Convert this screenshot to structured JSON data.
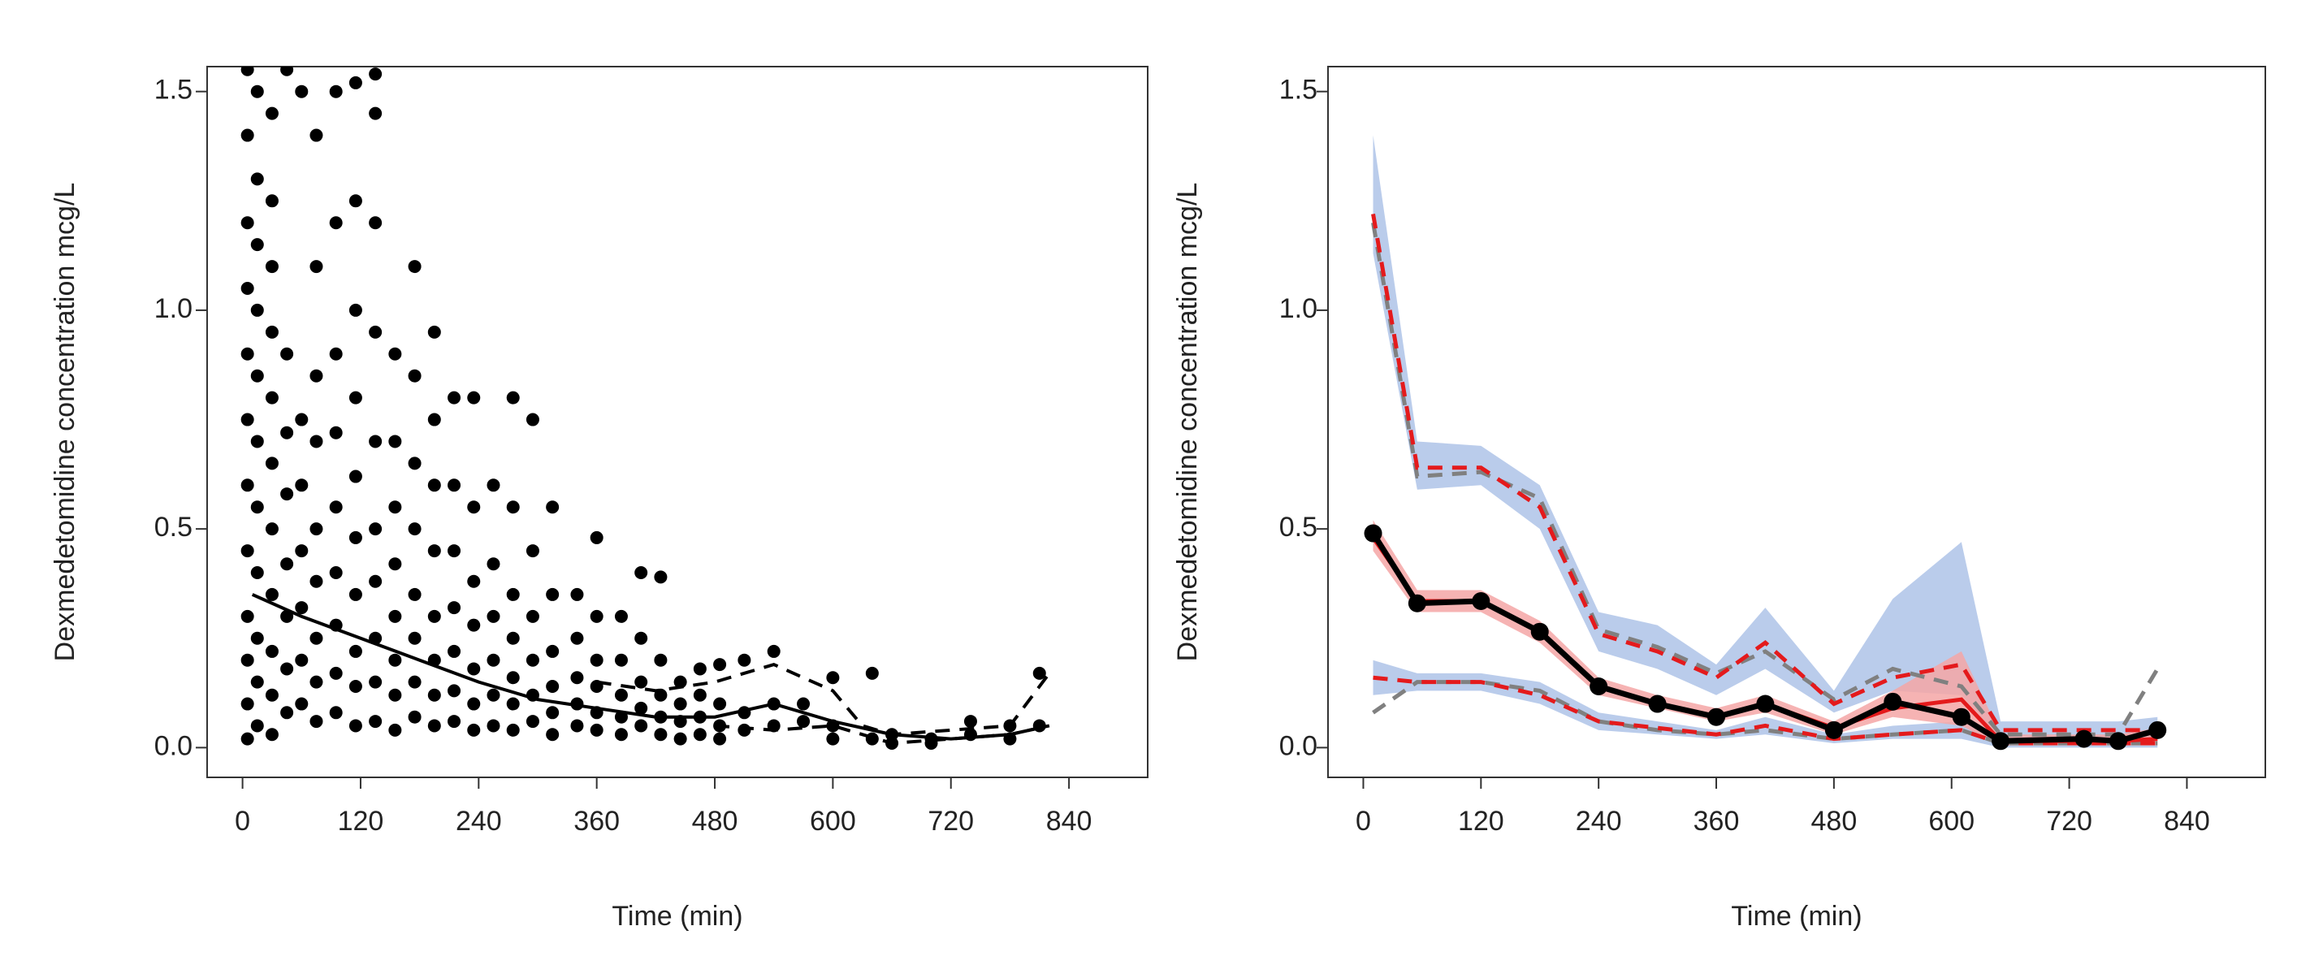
{
  "chart_data": [
    {
      "type": "scatter",
      "ylabel": "Dexmedetomidine concentration mcg/L",
      "xlabel": "Time (min)",
      "xlim": [
        -36,
        920
      ],
      "ylim": [
        -0.068,
        1.557
      ],
      "xticks": [
        0,
        120,
        240,
        360,
        480,
        600,
        720,
        840
      ],
      "yticks": [
        {
          "value": 0,
          "label": "0.0"
        },
        {
          "value": 0.5,
          "label": "0.5"
        },
        {
          "value": 1,
          "label": "1.0"
        },
        {
          "value": 1.5,
          "label": "1.5"
        }
      ],
      "color": "#000000",
      "points": [
        {
          "x": 5,
          "y": [
            0.02,
            0.1,
            0.2,
            0.3,
            0.45,
            0.6,
            0.75,
            0.9,
            1.05,
            1.2,
            1.4,
            1.55
          ]
        },
        {
          "x": 15,
          "y": [
            0.05,
            0.15,
            0.25,
            0.4,
            0.55,
            0.7,
            0.85,
            1.0,
            1.15,
            1.3,
            1.5
          ]
        },
        {
          "x": 30,
          "y": [
            0.03,
            0.12,
            0.22,
            0.35,
            0.5,
            0.65,
            0.8,
            0.95,
            1.1,
            1.25,
            1.45
          ]
        },
        {
          "x": 45,
          "y": [
            0.08,
            0.18,
            0.3,
            0.42,
            0.58,
            0.72,
            0.9,
            1.55
          ]
        },
        {
          "x": 60,
          "y": [
            0.1,
            0.2,
            0.32,
            0.45,
            0.6,
            0.75,
            1.5
          ]
        },
        {
          "x": 75,
          "y": [
            0.06,
            0.15,
            0.25,
            0.38,
            0.5,
            0.7,
            0.85,
            1.1,
            1.4
          ]
        },
        {
          "x": 95,
          "y": [
            0.08,
            0.17,
            0.28,
            0.4,
            0.55,
            0.72,
            0.9,
            1.2,
            1.5
          ]
        },
        {
          "x": 115,
          "y": [
            0.05,
            0.14,
            0.22,
            0.35,
            0.48,
            0.62,
            0.8,
            1.0,
            1.25,
            1.52
          ]
        },
        {
          "x": 135,
          "y": [
            0.06,
            0.15,
            0.25,
            0.38,
            0.5,
            0.7,
            0.95,
            1.2,
            1.45,
            1.54
          ]
        },
        {
          "x": 155,
          "y": [
            0.04,
            0.12,
            0.2,
            0.3,
            0.42,
            0.55,
            0.7,
            0.9
          ]
        },
        {
          "x": 175,
          "y": [
            0.07,
            0.15,
            0.25,
            0.35,
            0.5,
            0.65,
            0.85,
            1.1
          ]
        },
        {
          "x": 195,
          "y": [
            0.05,
            0.12,
            0.2,
            0.3,
            0.45,
            0.6,
            0.75,
            0.95
          ]
        },
        {
          "x": 215,
          "y": [
            0.06,
            0.13,
            0.22,
            0.32,
            0.45,
            0.6,
            0.8
          ]
        },
        {
          "x": 235,
          "y": [
            0.04,
            0.1,
            0.18,
            0.28,
            0.38,
            0.55,
            0.8
          ]
        },
        {
          "x": 255,
          "y": [
            0.05,
            0.12,
            0.2,
            0.3,
            0.42,
            0.6
          ]
        },
        {
          "x": 275,
          "y": [
            0.04,
            0.1,
            0.16,
            0.25,
            0.35,
            0.55,
            0.8
          ]
        },
        {
          "x": 295,
          "y": [
            0.06,
            0.12,
            0.2,
            0.3,
            0.45,
            0.75
          ]
        },
        {
          "x": 315,
          "y": [
            0.03,
            0.08,
            0.14,
            0.22,
            0.35,
            0.55
          ]
        },
        {
          "x": 340,
          "y": [
            0.05,
            0.1,
            0.16,
            0.25,
            0.35
          ]
        },
        {
          "x": 360,
          "y": [
            0.04,
            0.08,
            0.14,
            0.2,
            0.3,
            0.48
          ]
        },
        {
          "x": 385,
          "y": [
            0.03,
            0.07,
            0.12,
            0.2,
            0.3
          ]
        },
        {
          "x": 405,
          "y": [
            0.05,
            0.09,
            0.15,
            0.25,
            0.4
          ]
        },
        {
          "x": 425,
          "y": [
            0.03,
            0.07,
            0.12,
            0.2,
            0.39
          ]
        },
        {
          "x": 445,
          "y": [
            0.02,
            0.06,
            0.1,
            0.15
          ]
        },
        {
          "x": 465,
          "y": [
            0.03,
            0.07,
            0.12,
            0.18
          ]
        },
        {
          "x": 485,
          "y": [
            0.02,
            0.05,
            0.1,
            0.19
          ]
        },
        {
          "x": 510,
          "y": [
            0.04,
            0.08,
            0.2
          ]
        },
        {
          "x": 540,
          "y": [
            0.05,
            0.1,
            0.22
          ]
        },
        {
          "x": 570,
          "y": [
            0.06,
            0.1
          ]
        },
        {
          "x": 600,
          "y": [
            0.02,
            0.05,
            0.16
          ]
        },
        {
          "x": 640,
          "y": [
            0.02,
            0.17
          ]
        },
        {
          "x": 660,
          "y": [
            0.01,
            0.03
          ]
        },
        {
          "x": 700,
          "y": [
            0.01,
            0.02
          ]
        },
        {
          "x": 740,
          "y": [
            0.03,
            0.06
          ]
        },
        {
          "x": 780,
          "y": [
            0.02,
            0.05
          ]
        },
        {
          "x": 810,
          "y": [
            0.17,
            0.05
          ]
        }
      ],
      "lines": [
        {
          "style": "solid",
          "color": "#000000",
          "x": [
            10,
            60,
            120,
            180,
            240,
            300,
            360,
            420,
            480,
            540,
            600,
            660,
            720,
            780,
            820
          ],
          "y": [
            0.35,
            0.3,
            0.25,
            0.2,
            0.15,
            0.11,
            0.09,
            0.07,
            0.07,
            0.1,
            0.06,
            0.03,
            0.02,
            0.03,
            0.05
          ]
        },
        {
          "style": "dashed",
          "color": "#000000",
          "x": [
            360,
            420,
            480,
            540,
            600,
            630,
            660,
            720,
            780,
            820
          ],
          "y": [
            0.15,
            0.13,
            0.15,
            0.19,
            0.13,
            0.05,
            0.03,
            0.04,
            0.05,
            0.17
          ]
        },
        {
          "style": "dashed",
          "color": "#000000",
          "x": [
            480,
            540,
            600,
            660,
            720,
            780,
            820
          ],
          "y": [
            0.05,
            0.04,
            0.05,
            0.01,
            0.02,
            0.03,
            0.05
          ]
        }
      ]
    },
    {
      "type": "line",
      "ylabel": "Dexmedetomidine concentration mcg/L",
      "xlabel": "Time (min)",
      "xlim": [
        -36,
        920
      ],
      "ylim": [
        -0.068,
        1.557
      ],
      "xticks": [
        0,
        120,
        240,
        360,
        480,
        600,
        720,
        840
      ],
      "yticks": [
        {
          "value": 0,
          "label": "0.0"
        },
        {
          "value": 0.5,
          "label": "0.5"
        },
        {
          "value": 1,
          "label": "1.0"
        },
        {
          "value": 1.5,
          "label": "1.5"
        }
      ],
      "x": [
        10,
        55,
        120,
        180,
        240,
        300,
        360,
        410,
        480,
        540,
        610,
        650,
        735,
        770,
        810
      ],
      "bands": [
        {
          "color": "#aec3e8",
          "low": [
            1.13,
            0.59,
            0.6,
            0.5,
            0.22,
            0.18,
            0.12,
            0.18,
            0.08,
            0.13,
            0.12,
            0.02,
            0.02,
            0.02,
            0.02
          ],
          "high": [
            1.4,
            0.7,
            0.69,
            0.6,
            0.31,
            0.28,
            0.19,
            0.32,
            0.13,
            0.34,
            0.47,
            0.06,
            0.06,
            0.06,
            0.07
          ]
        },
        {
          "color": "#aec3e8",
          "low": [
            0.12,
            0.13,
            0.13,
            0.1,
            0.04,
            0.03,
            0.02,
            0.03,
            0.01,
            0.02,
            0.02,
            0.0,
            0.0,
            0.0,
            0.0
          ],
          "high": [
            0.2,
            0.17,
            0.17,
            0.15,
            0.08,
            0.06,
            0.04,
            0.07,
            0.03,
            0.05,
            0.06,
            0.02,
            0.02,
            0.02,
            0.02
          ]
        },
        {
          "color": "#f4a6a6",
          "low": [
            0.45,
            0.31,
            0.31,
            0.24,
            0.12,
            0.09,
            0.06,
            0.08,
            0.03,
            0.07,
            0.05,
            0.005,
            0.005,
            0.005,
            0.005
          ],
          "high": [
            0.52,
            0.36,
            0.36,
            0.29,
            0.16,
            0.12,
            0.09,
            0.12,
            0.06,
            0.13,
            0.22,
            0.03,
            0.03,
            0.03,
            0.045
          ]
        }
      ],
      "series": [
        {
          "style": "dashed",
          "color": "#808080",
          "values": [
            1.2,
            0.62,
            0.63,
            0.57,
            0.27,
            0.23,
            0.17,
            0.22,
            0.11,
            0.18,
            0.14,
            0.03,
            0.03,
            0.03,
            0.18
          ]
        },
        {
          "style": "dashed",
          "color": "#808080",
          "values": [
            0.08,
            0.15,
            0.15,
            0.13,
            0.06,
            0.04,
            0.03,
            0.04,
            0.02,
            0.03,
            0.04,
            0.01,
            0.01,
            0.01,
            0.01
          ]
        },
        {
          "style": "dashed",
          "color": "#e41a1c",
          "values": [
            1.22,
            0.64,
            0.64,
            0.55,
            0.26,
            0.22,
            0.16,
            0.24,
            0.1,
            0.16,
            0.19,
            0.04,
            0.04,
            0.04,
            0.04
          ]
        },
        {
          "style": "dashed",
          "color": "#e41a1c",
          "values": [
            0.16,
            0.15,
            0.15,
            0.12,
            0.06,
            0.045,
            0.03,
            0.05,
            0.02,
            0.03,
            0.04,
            0.01,
            0.01,
            0.01,
            0.01
          ]
        },
        {
          "style": "solid",
          "color": "#e41a1c",
          "values": [
            0.48,
            0.335,
            0.335,
            0.265,
            0.14,
            0.1,
            0.07,
            0.1,
            0.045,
            0.09,
            0.11,
            0.015,
            0.015,
            0.015,
            0.02
          ]
        },
        {
          "style": "solid",
          "color": "#000000",
          "marker": true,
          "values": [
            0.49,
            0.33,
            0.335,
            0.265,
            0.14,
            0.1,
            0.07,
            0.1,
            0.04,
            0.105,
            0.07,
            0.015,
            0.02,
            0.015,
            0.04
          ]
        }
      ]
    }
  ]
}
